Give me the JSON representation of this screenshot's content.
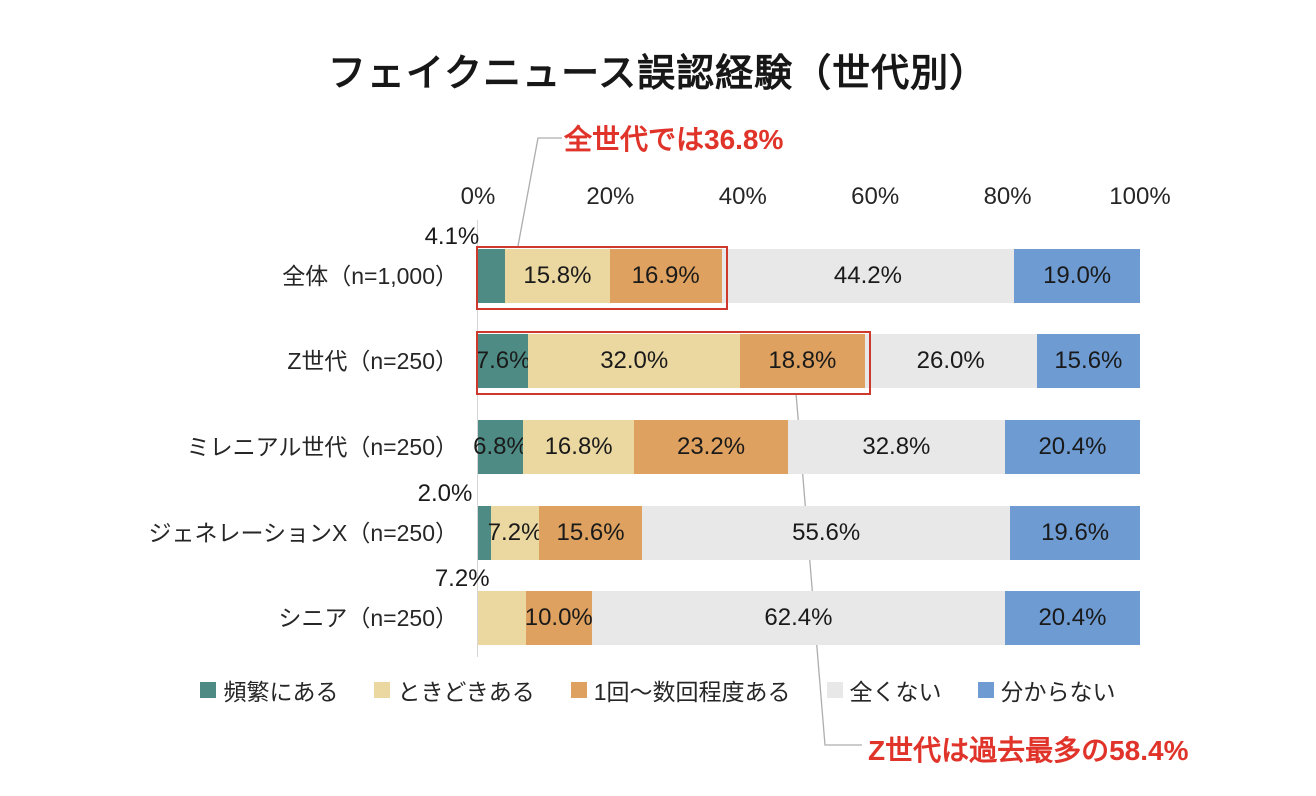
{
  "chart_data": {
    "type": "bar",
    "orientation": "horizontal-stacked",
    "title": "フェイクニュース誤認経験（世代別）",
    "x_ticks": [
      "0%",
      "20%",
      "40%",
      "60%",
      "80%",
      "100%"
    ],
    "x_range": [
      0,
      100
    ],
    "grid": false,
    "legend_position": "bottom",
    "series": [
      {
        "name": "頻繁にある",
        "color": "#4E8B84"
      },
      {
        "name": "ときどきある",
        "color": "#EBD7A0"
      },
      {
        "name": "1回〜数回程度ある",
        "color": "#DEA15F"
      },
      {
        "name": "全くない",
        "color": "#E8E8E8"
      },
      {
        "name": "分からない",
        "color": "#6D9BD2"
      }
    ],
    "categories": [
      "全体（n=1,000）",
      "Z世代（n=250）",
      "ミレニアル世代（n=250）",
      "ジェネレーションX（n=250）",
      "シニア（n=250）"
    ],
    "rows": [
      {
        "values": [
          4.1,
          15.8,
          16.9,
          44.2,
          19.0
        ],
        "labels": [
          "4.1%",
          "15.8%",
          "16.9%",
          "44.2%",
          "19.0%"
        ],
        "placement": [
          "above",
          "in",
          "in",
          "in",
          "in"
        ]
      },
      {
        "values": [
          7.6,
          32.0,
          18.8,
          26.0,
          15.6
        ],
        "labels": [
          "7.6%",
          "32.0%",
          "18.8%",
          "26.0%",
          "15.6%"
        ],
        "placement": [
          "in",
          "in",
          "in",
          "in",
          "in"
        ]
      },
      {
        "values": [
          6.8,
          16.8,
          23.2,
          32.8,
          20.4
        ],
        "labels": [
          "6.8%",
          "16.8%",
          "23.2%",
          "32.8%",
          "20.4%"
        ],
        "placement": [
          "in",
          "in",
          "in",
          "in",
          "in"
        ]
      },
      {
        "values": [
          2.0,
          7.2,
          15.6,
          55.6,
          19.6
        ],
        "labels": [
          "2.0%",
          "7.2%",
          "15.6%",
          "55.6%",
          "19.6%"
        ],
        "placement": [
          "above",
          "in",
          "in",
          "in",
          "in"
        ]
      },
      {
        "values": [
          0,
          7.2,
          10.0,
          62.4,
          20.4
        ],
        "labels": [
          "",
          "7.2%",
          "10.0%",
          "62.4%",
          "20.4%"
        ],
        "placement": [
          "none",
          "above",
          "in",
          "in",
          "in"
        ]
      }
    ],
    "highlights": [
      {
        "row": 0,
        "segments": [
          0,
          2
        ],
        "total_label": "36.8%"
      },
      {
        "row": 1,
        "segments": [
          0,
          2
        ],
        "total_label": "58.4%"
      }
    ],
    "highlight_color": "#CD3A2D",
    "annotation_color": "#E0332A",
    "leader_color": "#ADADAD",
    "annotations": [
      {
        "text": "全世代では36.8%"
      },
      {
        "text": "Z世代は過去最多の58.4%"
      }
    ]
  }
}
